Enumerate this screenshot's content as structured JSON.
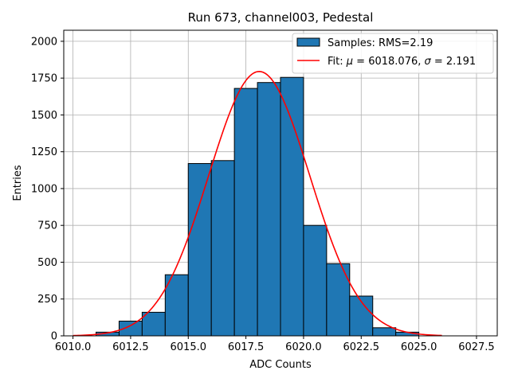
{
  "chart_data": {
    "type": "bar",
    "title": "Run 673, channel003, Pedestal",
    "xlabel": "ADC Counts",
    "ylabel": "Entries",
    "xlim": [
      6009.6,
      6028.4
    ],
    "ylim": [
      0,
      2075
    ],
    "grid": true,
    "legend_placement": "top-right",
    "x_ticks": [
      6010.0,
      6012.5,
      6015.0,
      6017.5,
      6020.0,
      6022.5,
      6025.0,
      6027.5
    ],
    "x_tick_labels": [
      "6010.0",
      "6012.5",
      "6015.0",
      "6017.5",
      "6020.0",
      "6022.5",
      "6025.0",
      "6027.5"
    ],
    "y_ticks": [
      0,
      250,
      500,
      750,
      1000,
      1250,
      1500,
      1750,
      2000
    ],
    "y_tick_labels": [
      "0",
      "250",
      "500",
      "750",
      "1000",
      "1250",
      "1500",
      "1750",
      "2000"
    ],
    "histogram": {
      "name": "Samples: RMS=2.19",
      "color": "#1f77b4",
      "edge_color": "#000000",
      "bin_edges": [
        6010,
        6011,
        6012,
        6013,
        6014,
        6015,
        6016,
        6017,
        6018,
        6019,
        6020,
        6021,
        6022,
        6023,
        6024,
        6025,
        6026,
        6027,
        6028
      ],
      "counts": [
        0,
        25,
        100,
        160,
        415,
        1170,
        1190,
        1680,
        1720,
        1755,
        750,
        490,
        270,
        55,
        25,
        0,
        0,
        0
      ]
    },
    "fit": {
      "name": "Fit: μ = 6018.076, σ = 2.191",
      "name_prefix": "Fit: ",
      "mu_symbol": "μ",
      "mu_text": " = 6018.076, ",
      "sigma_symbol": "σ",
      "sigma_text": " = 2.191",
      "color": "#ff0000",
      "mu": 6018.076,
      "sigma": 2.191,
      "amplitude": 1795,
      "x_range": [
        6010,
        6026
      ]
    }
  }
}
